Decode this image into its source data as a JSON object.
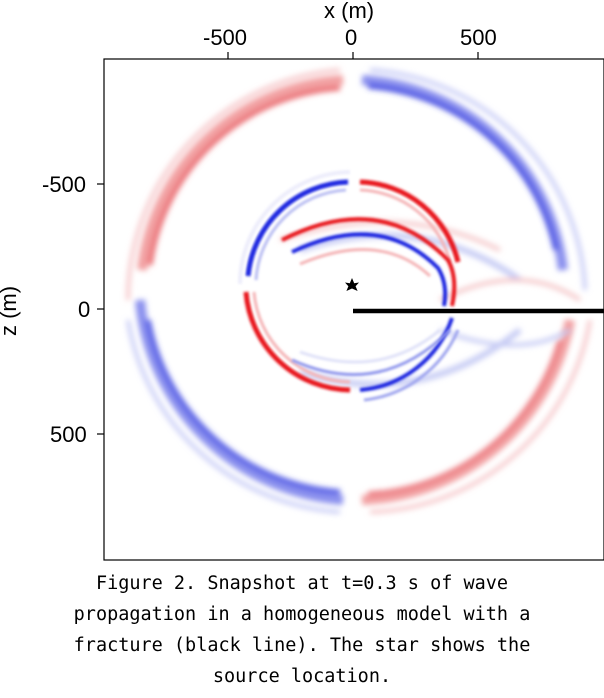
{
  "figure": {
    "x_axis_label": "x (m)",
    "z_axis_label": "z (m)",
    "x_ticks": [
      "-500",
      "0",
      "500"
    ],
    "z_ticks": [
      "-500",
      "0",
      "500"
    ],
    "x_range": [
      -1000,
      1000
    ],
    "z_range": [
      -1000,
      1000
    ],
    "source_location": [
      0,
      -100
    ],
    "fracture_line": {
      "x_start": 0,
      "x_end": 1000,
      "z": 0
    },
    "colors": {
      "positive": "#e8141c",
      "negative": "#1a25e0",
      "fracture": "#000000"
    }
  },
  "caption": {
    "lines": [
      "Figure 2. Snapshot at t=0.3 s of wave",
      "propagation in a homogeneous model with a",
      "fracture (black line). The star shows the",
      "source location."
    ]
  }
}
